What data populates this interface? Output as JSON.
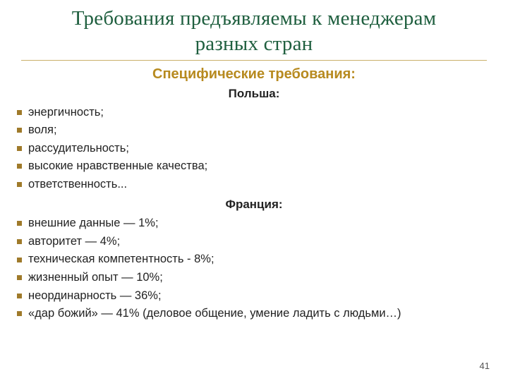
{
  "colors": {
    "title": "#1f5f3f",
    "rule": "#c9b06a",
    "subtitle": "#b78a1f",
    "bullet": "#9f7a2a",
    "text": "#222222",
    "page_number": "#555555",
    "background": "#ffffff"
  },
  "typography": {
    "title_fontsize": 29,
    "subtitle_fontsize": 20,
    "section_fontsize": 17,
    "list_fontsize": 16.5,
    "list_line_height": 1.55
  },
  "title_line1": "Требования предъявляемы к менеджерам",
  "title_line2": "разных стран",
  "subtitle": "Специфические требования:",
  "sections": [
    {
      "heading": "Польша:",
      "items": [
        "энергичность;",
        "воля;",
        "рассудительность;",
        "высокие нравственные качества;",
        "ответственность..."
      ]
    },
    {
      "heading": "Франция:",
      "items": [
        "внешние данные — 1%;",
        "авторитет — 4%;",
        "техническая компетентность - 8%;",
        "жизненный опыт — 10%;",
        "неординарность — 36%;",
        "«дар божий» — 41% (деловое общение, умение ладить с людьми…)"
      ]
    }
  ],
  "page_number": "41"
}
